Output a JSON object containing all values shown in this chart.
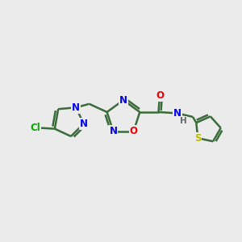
{
  "background_color": "#ebebeb",
  "bond_color": "#3a6b3a",
  "bond_width": 1.8,
  "atom_colors": {
    "N": "#0000ee",
    "O": "#ee0000",
    "S": "#bbbb00",
    "Cl": "#00aa00",
    "C": "#3a6b3a",
    "H": "#666666"
  },
  "font_size": 8.5,
  "fig_width": 3.0,
  "fig_height": 3.0,
  "dpi": 100
}
